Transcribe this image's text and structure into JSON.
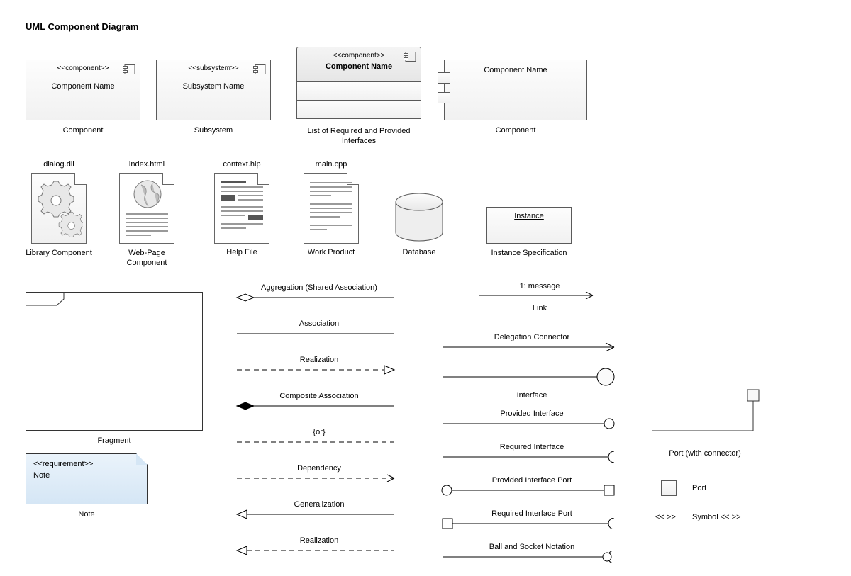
{
  "title": "UML Component Diagram",
  "colors": {
    "stroke": "#5a5a5a",
    "fill_light": "#fbfbfb",
    "fill_grad": "#efefef",
    "text": "#000000",
    "note_bg": "#e1edf8"
  },
  "row1": {
    "component": {
      "stereo": "<<component>>",
      "name": "Component Name",
      "caption": "Component"
    },
    "subsystem": {
      "stereo": "<<subsystem>>",
      "name": "Subsystem Name",
      "caption": "Subsystem"
    },
    "list": {
      "stereo": "<<component>>",
      "name": "Component Name",
      "caption": "List of Required and Provided Interfaces"
    },
    "compWithPorts": {
      "name": "Component Name",
      "caption": "Component"
    }
  },
  "row2": {
    "library": {
      "file": "dialog.dll",
      "caption": "Library Component"
    },
    "webpage": {
      "file": "index.html",
      "caption": "Web-Page Component"
    },
    "help": {
      "file": "context.hlp",
      "caption": "Help File"
    },
    "work": {
      "file": "main.cpp",
      "caption": "Work Product"
    },
    "db": {
      "caption": "Database"
    },
    "instance": {
      "name": "Instance",
      "caption": "Instance Specification"
    }
  },
  "fragment": {
    "caption": "Fragment"
  },
  "note": {
    "stereo": "<<requirement>>",
    "text": "Note",
    "caption": "Note"
  },
  "connectors_left": [
    {
      "key": "aggregation",
      "label": "Aggregation (Shared Association)",
      "style": "line",
      "start": "diamond-open",
      "end": "none",
      "dash": false
    },
    {
      "key": "association",
      "label": "Association",
      "style": "line",
      "start": "none",
      "end": "none",
      "dash": false
    },
    {
      "key": "realization1",
      "label": "Realization",
      "style": "line",
      "start": "none",
      "end": "tri-open",
      "dash": true
    },
    {
      "key": "composite",
      "label": "Composite Association",
      "style": "line",
      "start": "diamond-filled",
      "end": "none",
      "dash": false
    },
    {
      "key": "or",
      "label": "{or}",
      "style": "line",
      "start": "none",
      "end": "none",
      "dash": true
    },
    {
      "key": "dependency",
      "label": "Dependency",
      "style": "line",
      "start": "none",
      "end": "open-arrow",
      "dash": true
    },
    {
      "key": "generalization",
      "label": "Generalization",
      "style": "line",
      "start": "tri-open",
      "end": "none",
      "dash": false
    },
    {
      "key": "realization2",
      "label": "Realization",
      "style": "line",
      "start": "tri-open",
      "end": "none",
      "dash": true
    }
  ],
  "link": {
    "label_top": "1: message",
    "label_bottom": "Link"
  },
  "connectors_right": [
    {
      "key": "delegation",
      "label": "Delegation Connector",
      "end": "open-arrow"
    },
    {
      "key": "interface",
      "label": "Interface",
      "end": "big-circle"
    },
    {
      "key": "provided",
      "label": "Provided Interface",
      "end": "lollipop"
    },
    {
      "key": "required",
      "label": "Required Interface",
      "end": "socket"
    },
    {
      "key": "provided-port",
      "label": "Provided Interface Port",
      "start": "lollipop",
      "end": "square"
    },
    {
      "key": "required-port",
      "label": "Required Interface Port",
      "start": "square",
      "end": "socket"
    },
    {
      "key": "ball-socket",
      "label": "Ball and Socket Notation",
      "end": "ball-socket"
    }
  ],
  "port_conn": {
    "caption": "Port (with connector)"
  },
  "port": {
    "caption": "Port"
  },
  "symbol": {
    "left": "<< >>",
    "label": "Symbol << >>"
  }
}
